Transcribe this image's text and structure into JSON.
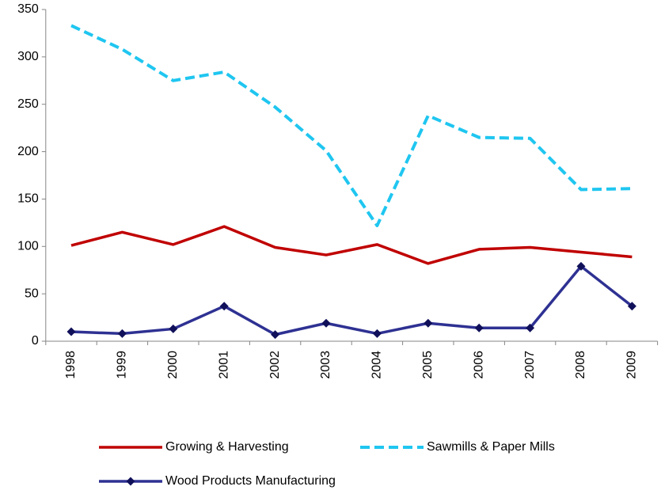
{
  "chart_data": {
    "type": "line",
    "categories": [
      "1998",
      "1999",
      "2000",
      "2001",
      "2002",
      "2003",
      "2004",
      "2005",
      "2006",
      "2007",
      "2008",
      "2009"
    ],
    "series": [
      {
        "name": "Growing & Harvesting",
        "color": "#c00000",
        "dashed": false,
        "marker": null,
        "values": [
          101,
          115,
          102,
          121,
          99,
          91,
          102,
          82,
          97,
          99,
          94,
          89
        ]
      },
      {
        "name": "Sawmills & Paper Mills",
        "color": "#1fc6f0",
        "dashed": true,
        "marker": null,
        "values": [
          333,
          308,
          275,
          284,
          247,
          201,
          122,
          238,
          215,
          214,
          160,
          161
        ]
      },
      {
        "name": "Wood Products Manufacturing",
        "color": "#2e3192",
        "dashed": false,
        "marker": "diamond",
        "values": [
          10,
          8,
          13,
          37,
          7,
          19,
          8,
          19,
          14,
          14,
          79,
          37
        ]
      }
    ],
    "ylim": [
      0,
      350
    ],
    "yticks": [
      0,
      50,
      100,
      150,
      200,
      250,
      300,
      350
    ],
    "grid": false
  }
}
